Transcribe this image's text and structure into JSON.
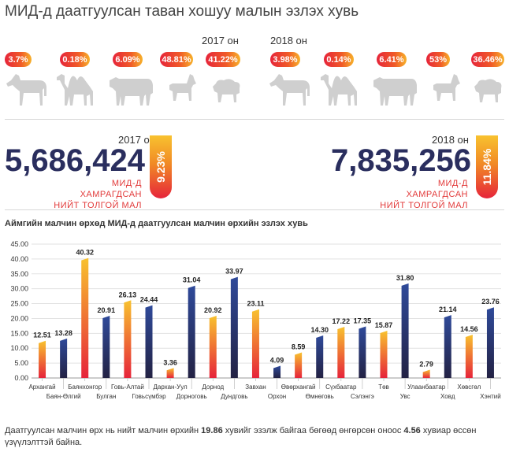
{
  "title": "МИД-д даатгуулсан таван хошуу малын эзлэх хувь",
  "years": {
    "y2017": "2017 он",
    "y2018": "2018 он"
  },
  "badges_2017": [
    "3.7%",
    "0.18%",
    "6.09%",
    "48.81%",
    "41.22%"
  ],
  "badges_2018": [
    "3.98%",
    "0.14%",
    "6.41%",
    "53%",
    "36.46%"
  ],
  "animals": [
    "horse-icon",
    "camel-icon",
    "cow-icon",
    "goat-icon",
    "sheep-icon"
  ],
  "totals": {
    "t2017": {
      "year": "2017 он",
      "value": "5,686,424",
      "caption1": "МИД-Д ХАМРАГДСАН",
      "caption2": "НИЙТ ТОЛГОЙ МАЛ",
      "pct": "9.23%"
    },
    "t2018": {
      "year": "2018 он",
      "value": "7,835,256",
      "caption1": "МИД-Д ХАМРАГДСАН",
      "caption2": "НИЙТ ТОЛГОЙ МАЛ",
      "pct": "11.84%"
    }
  },
  "colors": {
    "navy_top": "#2f4a9a",
    "navy_bottom": "#232244",
    "orange_top": "#f8c22f",
    "orange_bottom": "#e6243a",
    "accent": "#e6243a"
  },
  "chart_data": {
    "type": "bar",
    "title": "Аймгийн малчин өрхөд МИД-д даатгуулсан малчин өрхийн эзлэх хувь",
    "categories": [
      "Архангай",
      "Баян-Өлгий",
      "Баянхонгор",
      "Булган",
      "Говь-Алтай",
      "Говьсүмбэр",
      "Дархан-Уул",
      "Дорноговь",
      "Дорнод",
      "Дундговь",
      "Завхан",
      "Орхон",
      "Өвөрхангай",
      "Өмнөговь",
      "Сүхбаатар",
      "Сэлэнгэ",
      "Төв",
      "Увс",
      "Улаанбаатар",
      "Ховд",
      "Хөвсгөл",
      "Хэнтий"
    ],
    "values": [
      12.51,
      13.28,
      40.32,
      20.91,
      26.13,
      24.44,
      3.36,
      31.04,
      20.92,
      33.97,
      23.11,
      4.09,
      8.59,
      14.3,
      17.22,
      17.35,
      15.87,
      31.8,
      2.79,
      21.14,
      14.56,
      23.76
    ],
    "value_labels": [
      "12.51",
      "13.28",
      "40.32",
      "20.91",
      "26.13",
      "24.44",
      "3.36",
      "31.04",
      "20.92",
      "33.97",
      "23.11",
      "4.09",
      "8.59",
      "14.30",
      "17.22",
      "17.35",
      "15.87",
      "31.80",
      "2.79",
      "21.14",
      "14.56",
      "23.76"
    ],
    "bar_style": [
      "orange",
      "navy",
      "orange",
      "navy",
      "orange",
      "navy",
      "orange",
      "navy",
      "orange",
      "navy",
      "orange",
      "navy",
      "orange",
      "navy",
      "orange",
      "navy",
      "orange",
      "navy",
      "orange",
      "navy",
      "orange",
      "navy"
    ],
    "yticks": [
      "0.00",
      "5.00",
      "10.00",
      "15.00",
      "20.00",
      "25.00",
      "30.00",
      "35.00",
      "40.00",
      "45.00"
    ],
    "ylim": [
      0,
      45
    ],
    "grid": true
  },
  "footer": {
    "pre": "Даатгуулсан малчин өрх нь нийт малчин өрхийн ",
    "b1": "19.86",
    "mid": " хувийг эзэлж байгаа бөгөөд өнгөрсөн оноос ",
    "b2": "4.56",
    "post": " хувиар өссөн үзүүлэлттэй байна."
  }
}
